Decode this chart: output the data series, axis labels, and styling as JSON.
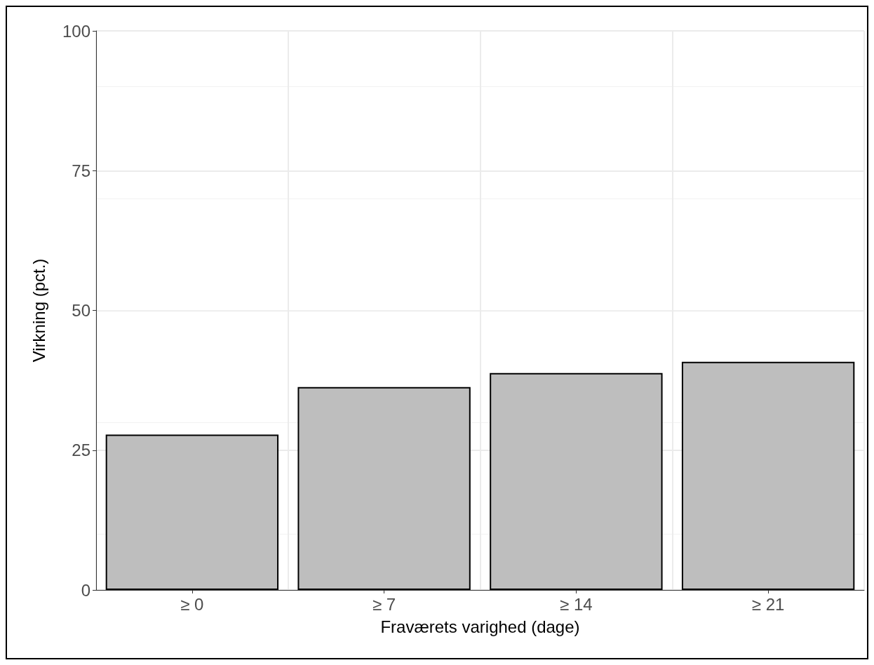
{
  "chart_data": {
    "type": "bar",
    "xlabel": "Fraværets varighed (dage)",
    "ylabel": "Virkning (pct.)",
    "categories": [
      "≥ 0",
      "≥ 7",
      "≥ 14",
      "≥ 21"
    ],
    "values": [
      27.8,
      36.3,
      38.8,
      40.8
    ],
    "color": "#bebebe",
    "ylim": [
      0,
      100
    ],
    "yticks": [
      0,
      25,
      50,
      75,
      100
    ],
    "grid": true
  }
}
